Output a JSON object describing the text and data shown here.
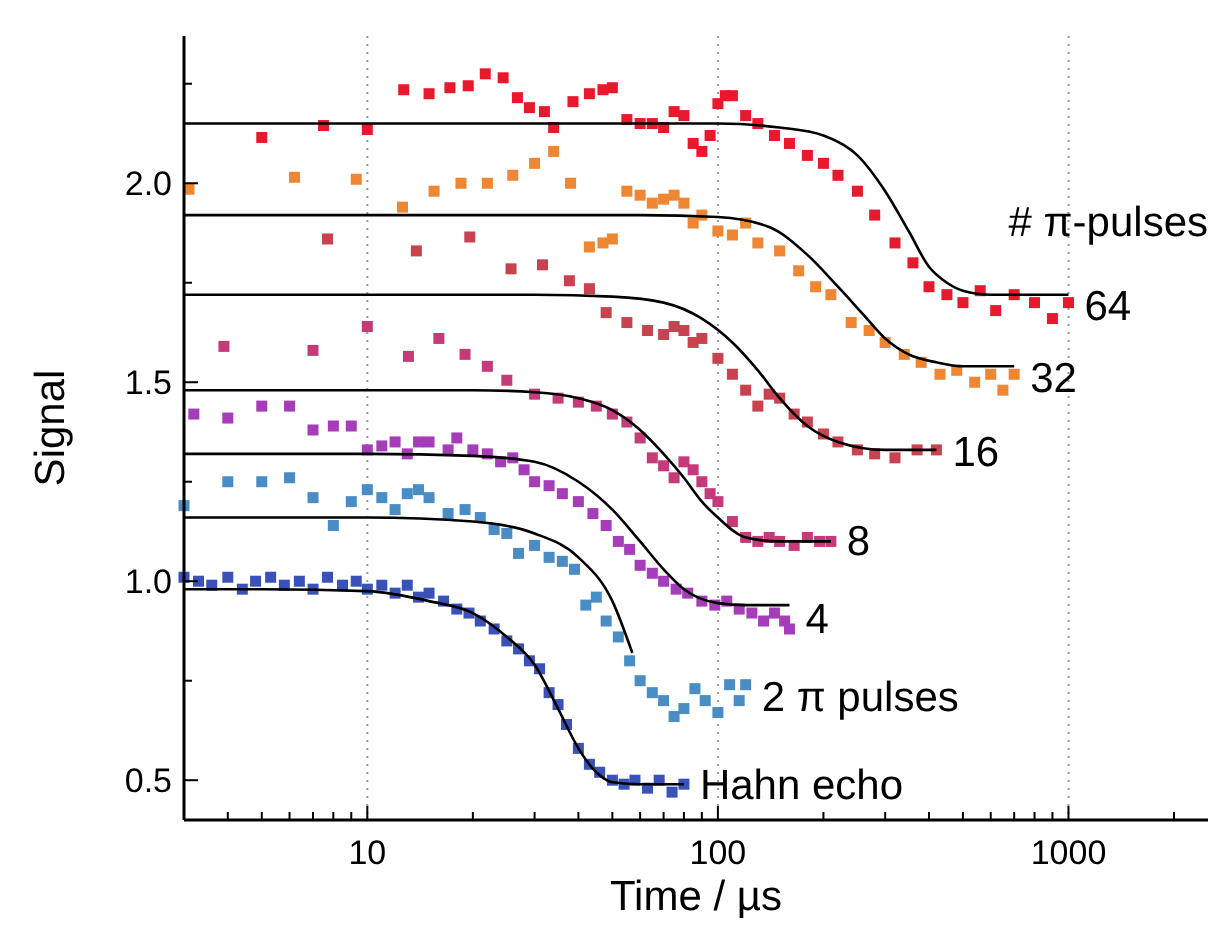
{
  "chart_data": {
    "type": "scatter",
    "xlabel": "Time / µs",
    "ylabel": "Signal",
    "legend_title": "# π-pulses",
    "log": "x",
    "grid": "x",
    "marker": "square",
    "xlim": [
      3,
      2500
    ],
    "ylim": [
      0.4,
      2.37
    ],
    "xticks": [
      {
        "value": 3,
        "label": null
      },
      {
        "value": 4,
        "label": null
      },
      {
        "value": 5,
        "label": null
      },
      {
        "value": 6,
        "label": null
      },
      {
        "value": 7,
        "label": null
      },
      {
        "value": 8,
        "label": null
      },
      {
        "value": 9,
        "label": null
      },
      10,
      {
        "value": 20,
        "label": null
      },
      {
        "value": 30,
        "label": null
      },
      {
        "value": 40,
        "label": null
      },
      {
        "value": 50,
        "label": null
      },
      {
        "value": 60,
        "label": null
      },
      {
        "value": 70,
        "label": null
      },
      {
        "value": 80,
        "label": null
      },
      {
        "value": 90,
        "label": null
      },
      100,
      {
        "value": 200,
        "label": null
      },
      {
        "value": 300,
        "label": null
      },
      {
        "value": 400,
        "label": null
      },
      {
        "value": 500,
        "label": null
      },
      {
        "value": 600,
        "label": null
      },
      {
        "value": 700,
        "label": null
      },
      {
        "value": 800,
        "label": null
      },
      {
        "value": 900,
        "label": null
      },
      1000,
      {
        "value": 2000,
        "label": null
      }
    ],
    "yticks": [
      0.5,
      {
        "value": 0.75,
        "label": null
      },
      {
        "value": 1,
        "label": "1.0"
      },
      {
        "value": 1.25,
        "label": null
      },
      1.5,
      {
        "value": 1.75,
        "label": null
      },
      {
        "value": 2,
        "label": "2.0"
      },
      {
        "value": 2.25,
        "label": null
      }
    ],
    "series": [
      {
        "name": "Hahn echo",
        "color": "#3a52b8",
        "x": [
          3,
          3.3,
          3.6,
          4,
          4.4,
          4.8,
          5.3,
          5.8,
          6.4,
          7,
          7.7,
          8.5,
          9.3,
          10,
          11,
          12,
          13,
          14,
          15,
          16.5,
          18,
          19.5,
          21,
          23,
          25,
          27,
          29,
          31,
          33,
          35,
          37,
          40,
          43,
          46,
          50,
          54,
          58,
          63,
          68,
          74,
          80
        ],
        "values": [
          1.01,
          1.0,
          0.99,
          1.01,
          0.98,
          1.0,
          1.01,
          0.99,
          1.0,
          0.98,
          1.01,
          0.99,
          1.0,
          0.98,
          0.99,
          0.97,
          0.99,
          0.96,
          0.97,
          0.95,
          0.93,
          0.92,
          0.9,
          0.88,
          0.85,
          0.83,
          0.8,
          0.78,
          0.72,
          0.69,
          0.64,
          0.58,
          0.54,
          0.52,
          0.5,
          0.49,
          0.5,
          0.48,
          0.5,
          0.47,
          0.49
        ]
      },
      {
        "type": "line",
        "marker": "none",
        "color": "#000000",
        "x": [
          3,
          5,
          10,
          15,
          20,
          25,
          30,
          35,
          40,
          45,
          50,
          60,
          80
        ],
        "values": [
          0.98,
          0.98,
          0.975,
          0.95,
          0.92,
          0.86,
          0.79,
          0.68,
          0.58,
          0.52,
          0.495,
          0.49,
          0.49
        ]
      },
      {
        "name": "2 π pulses",
        "color": "#4a8cc4",
        "x": [
          3,
          4,
          5,
          6,
          7,
          8,
          9,
          10,
          11,
          12,
          13,
          14,
          15,
          17,
          19,
          21,
          23,
          25,
          27,
          30,
          33,
          36,
          39,
          42,
          45,
          48,
          52,
          56,
          60,
          65,
          70,
          75,
          80,
          86,
          92,
          100,
          108,
          115,
          120
        ],
        "values": [
          1.19,
          1.25,
          1.25,
          1.26,
          1.21,
          1.14,
          1.2,
          1.23,
          1.21,
          1.18,
          1.22,
          1.23,
          1.21,
          1.17,
          1.18,
          1.16,
          1.13,
          1.12,
          1.07,
          1.09,
          1.06,
          1.05,
          1.03,
          0.94,
          0.96,
          0.9,
          0.86,
          0.8,
          0.75,
          0.72,
          0.7,
          0.66,
          0.68,
          0.73,
          0.7,
          0.67,
          0.74,
          0.7,
          0.74
        ]
      },
      {
        "type": "line",
        "marker": "none",
        "color": "#000000",
        "x": [
          3,
          5,
          10,
          20,
          30,
          40,
          50,
          57
        ],
        "values": [
          1.16,
          1.16,
          1.16,
          1.15,
          1.12,
          1.06,
          0.95,
          0.82
        ]
      },
      {
        "name": "4",
        "color": "#a63db8",
        "x": [
          3.2,
          4,
          5,
          6,
          7,
          8,
          9,
          10,
          11,
          12,
          13,
          14,
          15,
          17,
          18,
          20,
          22,
          24,
          26,
          28,
          30,
          33,
          36,
          40,
          44,
          48,
          52,
          56,
          60,
          65,
          70,
          76,
          82,
          90,
          98,
          106,
          115,
          125,
          135,
          145,
          155,
          160
        ],
        "values": [
          1.42,
          1.41,
          1.44,
          1.44,
          1.38,
          1.39,
          1.39,
          1.33,
          1.34,
          1.35,
          1.32,
          1.35,
          1.35,
          1.33,
          1.36,
          1.33,
          1.32,
          1.3,
          1.31,
          1.28,
          1.25,
          1.24,
          1.22,
          1.2,
          1.17,
          1.14,
          1.1,
          1.08,
          1.04,
          1.02,
          1.0,
          0.98,
          0.97,
          0.95,
          0.94,
          0.95,
          0.93,
          0.92,
          0.9,
          0.92,
          0.9,
          0.88
        ]
      },
      {
        "type": "line",
        "marker": "none",
        "color": "#000000",
        "x": [
          3,
          10,
          20,
          30,
          40,
          50,
          60,
          70,
          80,
          100,
          120,
          160
        ],
        "values": [
          1.32,
          1.32,
          1.315,
          1.3,
          1.25,
          1.18,
          1.1,
          1.03,
          0.98,
          0.945,
          0.94,
          0.94
        ]
      },
      {
        "name": "8",
        "color": "#c53b7a",
        "x": [
          3.9,
          7,
          10,
          13.1,
          16,
          19,
          22,
          25,
          30,
          35,
          40,
          45,
          50,
          55,
          60,
          65,
          70,
          75,
          80,
          85,
          90,
          95,
          100,
          110,
          120,
          130,
          140,
          150,
          165,
          180,
          195,
          210
        ],
        "values": [
          1.59,
          1.58,
          1.64,
          1.565,
          1.61,
          1.57,
          1.54,
          1.505,
          1.47,
          1.46,
          1.45,
          1.44,
          1.42,
          1.4,
          1.36,
          1.31,
          1.29,
          1.26,
          1.3,
          1.28,
          1.25,
          1.22,
          1.2,
          1.15,
          1.11,
          1.1,
          1.11,
          1.1,
          1.09,
          1.11,
          1.1,
          1.1
        ]
      },
      {
        "type": "line",
        "marker": "none",
        "color": "#000000",
        "x": [
          3,
          10,
          20,
          30,
          40,
          50,
          60,
          70,
          80,
          90,
          100,
          120,
          150,
          210
        ],
        "values": [
          1.48,
          1.48,
          1.48,
          1.475,
          1.46,
          1.43,
          1.38,
          1.32,
          1.26,
          1.2,
          1.16,
          1.11,
          1.1,
          1.1
        ]
      },
      {
        "name": "16",
        "color": "#c8434f",
        "x": [
          7.7,
          13.8,
          19.6,
          25.7,
          31.6,
          37.7,
          43,
          48,
          55,
          63,
          70,
          75,
          80,
          85,
          90,
          100,
          110,
          120,
          130,
          140,
          150,
          165,
          180,
          200,
          220,
          250,
          280,
          320,
          370,
          420
        ],
        "values": [
          1.86,
          1.83,
          1.865,
          1.785,
          1.795,
          1.755,
          1.735,
          1.675,
          1.65,
          1.63,
          1.62,
          1.64,
          1.63,
          1.6,
          1.61,
          1.56,
          1.52,
          1.48,
          1.44,
          1.47,
          1.46,
          1.42,
          1.4,
          1.37,
          1.35,
          1.33,
          1.32,
          1.31,
          1.33,
          1.33
        ]
      },
      {
        "type": "line",
        "marker": "none",
        "color": "#000000",
        "x": [
          3,
          10,
          30,
          50,
          70,
          90,
          110,
          130,
          150,
          180,
          220,
          300,
          420
        ],
        "values": [
          1.72,
          1.72,
          1.72,
          1.715,
          1.7,
          1.66,
          1.6,
          1.53,
          1.46,
          1.39,
          1.35,
          1.33,
          1.33
        ]
      },
      {
        "name": "32",
        "color": "#ee8632",
        "x": [
          3.1,
          6.2,
          9.3,
          12.6,
          15.5,
          18.5,
          22,
          26,
          30,
          34,
          38,
          43,
          47,
          50,
          55,
          60,
          65,
          70,
          75,
          80,
          85,
          90,
          100,
          110,
          120,
          130,
          150,
          170,
          190,
          210,
          240,
          270,
          300,
          340,
          380,
          430,
          480,
          540,
          600,
          650,
          700
        ],
        "values": [
          1.985,
          2.015,
          2.01,
          1.94,
          1.98,
          2.0,
          2.0,
          2.02,
          2.05,
          2.08,
          2.0,
          1.84,
          1.85,
          1.86,
          1.98,
          1.97,
          1.95,
          1.96,
          1.97,
          1.95,
          1.9,
          1.92,
          1.88,
          1.87,
          1.9,
          1.85,
          1.83,
          1.78,
          1.74,
          1.72,
          1.65,
          1.63,
          1.6,
          1.57,
          1.55,
          1.52,
          1.53,
          1.5,
          1.52,
          1.48,
          1.52
        ]
      },
      {
        "type": "line",
        "marker": "none",
        "color": "#000000",
        "x": [
          3,
          10,
          30,
          60,
          100,
          140,
          180,
          220,
          260,
          300,
          350,
          420,
          500,
          700
        ],
        "values": [
          1.92,
          1.92,
          1.92,
          1.92,
          1.915,
          1.89,
          1.82,
          1.74,
          1.67,
          1.61,
          1.57,
          1.55,
          1.54,
          1.54
        ]
      },
      {
        "name": "64",
        "color": "#e8192c",
        "x": [
          5,
          7.5,
          10,
          12.7,
          15,
          17.2,
          19.4,
          21.7,
          24.4,
          26.8,
          29,
          32,
          34,
          38.6,
          43,
          47,
          50,
          55,
          60,
          65,
          70,
          75,
          80,
          85,
          90,
          95,
          100,
          105,
          110,
          120,
          130,
          145,
          160,
          180,
          200,
          220,
          250,
          280,
          320,
          360,
          400,
          450,
          500,
          560,
          620,
          700,
          800,
          900,
          1000
        ],
        "values": [
          2.115,
          2.145,
          2.135,
          2.235,
          2.225,
          2.24,
          2.245,
          2.275,
          2.265,
          2.215,
          2.19,
          2.18,
          2.14,
          2.205,
          2.225,
          2.235,
          2.24,
          2.16,
          2.15,
          2.15,
          2.14,
          2.18,
          2.17,
          2.1,
          2.08,
          2.12,
          2.2,
          2.22,
          2.22,
          2.17,
          2.15,
          2.12,
          2.1,
          2.07,
          2.05,
          2.02,
          1.98,
          1.92,
          1.85,
          1.8,
          1.74,
          1.72,
          1.7,
          1.73,
          1.68,
          1.72,
          1.7,
          1.66,
          1.7
        ]
      },
      {
        "type": "line",
        "marker": "none",
        "color": "#000000",
        "x": [
          3,
          10,
          30,
          100,
          150,
          200,
          250,
          300,
          350,
          400,
          450,
          500,
          600,
          1000
        ],
        "values": [
          2.15,
          2.15,
          2.15,
          2.15,
          2.14,
          2.12,
          2.07,
          1.98,
          1.88,
          1.79,
          1.75,
          1.73,
          1.72,
          1.72
        ]
      }
    ]
  }
}
